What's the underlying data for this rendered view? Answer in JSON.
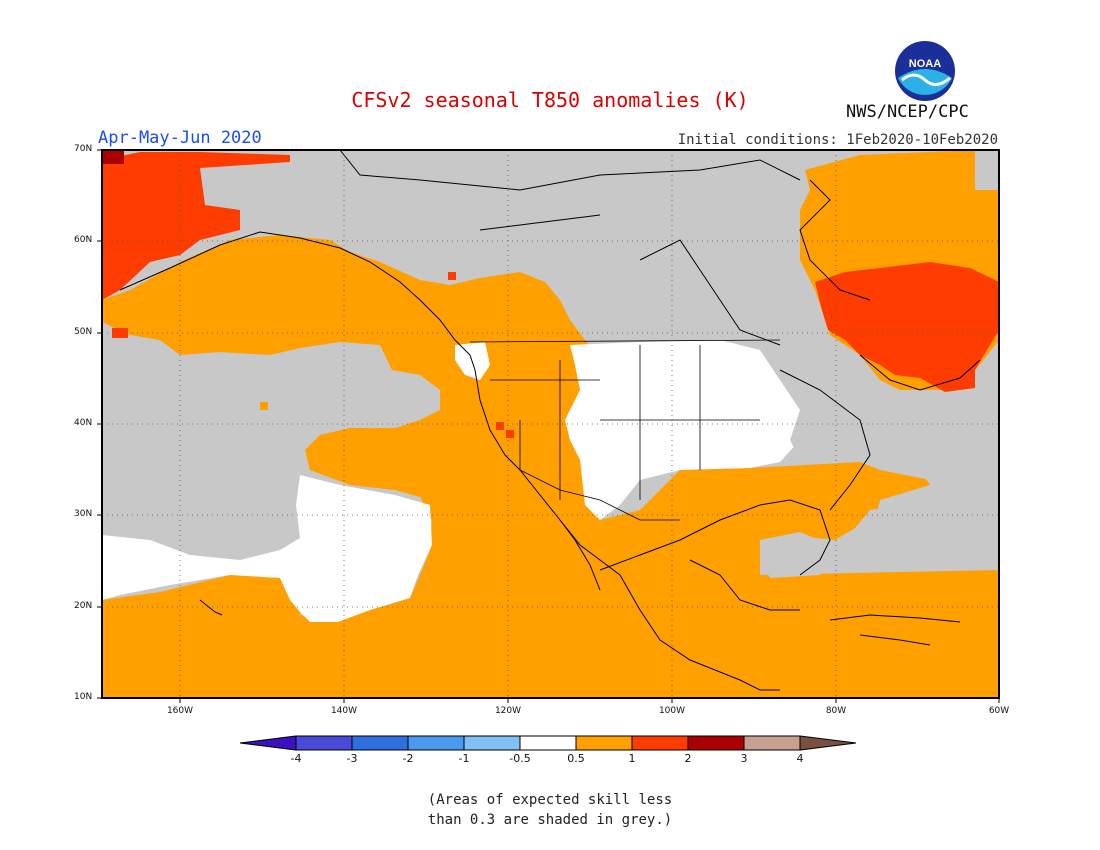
{
  "header": {
    "title": "CFSv2 seasonal T850 anomalies (K)",
    "period": "Apr-May-Jun 2020",
    "initial_conditions": "Initial conditions: 1Feb2020-10Feb2020",
    "agency": "NWS/NCEP/CPC",
    "logo_text": "NOAA"
  },
  "map": {
    "lat_labels": [
      "70N",
      "60N",
      "50N",
      "40N",
      "30N",
      "20N",
      "10N"
    ],
    "lon_labels": [
      "160W",
      "140W",
      "120W",
      "100W",
      "80W",
      "60W"
    ],
    "colors": {
      "grey_low_skill": "#c8c8c8",
      "neutral": "#ffffff",
      "orange_0_5_to_1": "#ff9f00",
      "red_1_to_2": "#ff3c00",
      "darkred_2_to_3": "#aa0000"
    }
  },
  "colorbar": {
    "tick_labels": [
      "-4",
      "-3",
      "-2",
      "-1",
      "-0.5",
      "0.5",
      "1",
      "2",
      "3",
      "4"
    ],
    "colors": [
      "#3a10c0",
      "#4a4ad8",
      "#2f6fe0",
      "#4a9af0",
      "#80c0f5",
      "#ffffff",
      "#ff9f00",
      "#ff3c00",
      "#aa0000",
      "#c8a090",
      "#7a5040"
    ]
  },
  "footnote": {
    "line1": "(Areas of expected skill less",
    "line2": "than 0.3 are shaded in grey.)"
  }
}
